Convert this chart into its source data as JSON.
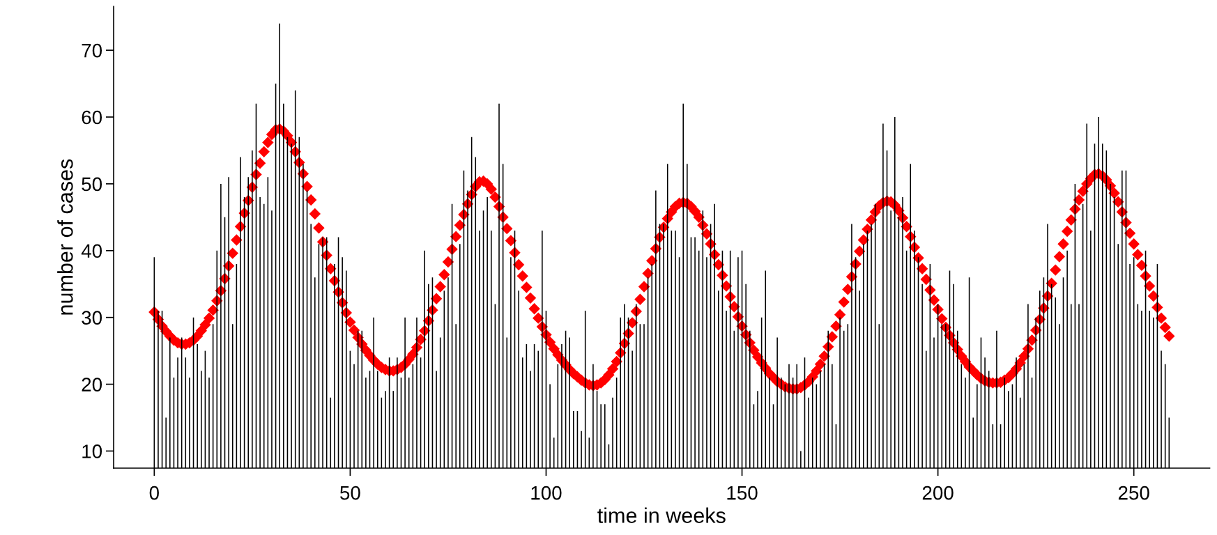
{
  "chart_data": {
    "type": "bar",
    "xlabel": "time in weeks",
    "ylabel": "number of cases",
    "x": [
      0,
      1,
      2,
      3,
      4,
      5,
      6,
      7,
      8,
      9,
      10,
      11,
      12,
      13,
      14,
      15,
      16,
      17,
      18,
      19,
      20,
      21,
      22,
      23,
      24,
      25,
      26,
      27,
      28,
      29,
      30,
      31,
      32,
      33,
      34,
      35,
      36,
      37,
      38,
      39,
      40,
      41,
      42,
      43,
      44,
      45,
      46,
      47,
      48,
      49,
      50,
      51,
      52,
      53,
      54,
      55,
      56,
      57,
      58,
      59,
      60,
      61,
      62,
      63,
      64,
      65,
      66,
      67,
      68,
      69,
      70,
      71,
      72,
      73,
      74,
      75,
      76,
      77,
      78,
      79,
      80,
      81,
      82,
      83,
      84,
      85,
      86,
      87,
      88,
      89,
      90,
      91,
      92,
      93,
      94,
      95,
      96,
      97,
      98,
      99,
      100,
      101,
      102,
      103,
      104,
      105,
      106,
      107,
      108,
      109,
      110,
      111,
      112,
      113,
      114,
      115,
      116,
      117,
      118,
      119,
      120,
      121,
      122,
      123,
      124,
      125,
      126,
      127,
      128,
      129,
      130,
      131,
      132,
      133,
      134,
      135,
      136,
      137,
      138,
      139,
      140,
      141,
      142,
      143,
      144,
      145,
      146,
      147,
      148,
      149,
      150,
      151,
      152,
      153,
      154,
      155,
      156,
      157,
      158,
      159,
      160,
      161,
      162,
      163,
      164,
      165,
      166,
      167,
      168,
      169,
      170,
      171,
      172,
      173,
      174,
      175,
      176,
      177,
      178,
      179,
      180,
      181,
      182,
      183,
      184,
      185,
      186,
      187,
      188,
      189,
      190,
      191,
      192,
      193,
      194,
      195,
      196,
      197,
      198,
      199,
      200,
      201,
      202,
      203,
      204,
      205,
      206,
      207,
      208,
      209,
      210,
      211,
      212,
      213,
      214,
      215,
      216,
      217,
      218,
      219,
      220,
      221,
      222,
      223,
      224,
      225,
      226,
      227,
      228,
      229,
      230,
      231,
      232,
      233,
      234,
      235,
      236,
      237,
      238,
      239,
      240,
      241,
      242,
      243,
      244,
      245,
      246,
      247,
      248,
      249,
      250,
      251,
      252,
      253,
      254,
      255,
      256,
      257,
      258,
      259
    ],
    "xlim": [
      -10.36,
      269.36
    ],
    "xticks": [
      0,
      50,
      100,
      150,
      200,
      250
    ],
    "ylim": [
      7.44,
      76.56
    ],
    "yticks": [
      10,
      20,
      30,
      40,
      50,
      60,
      70
    ],
    "grid": false,
    "series": [
      {
        "color": "#000000",
        "values": [
          39,
          31,
          31,
          15,
          27,
          21,
          24,
          27,
          24,
          21,
          30,
          26,
          22,
          25,
          21,
          29,
          40,
          50,
          45,
          51,
          29,
          38,
          54,
          48,
          51,
          55,
          62,
          48,
          47,
          51,
          46,
          65,
          74,
          62,
          57,
          56,
          64,
          57,
          53,
          49,
          44,
          36,
          41,
          42,
          42,
          18,
          38,
          42,
          39,
          37,
          25,
          23,
          28,
          28,
          21,
          22,
          30,
          22,
          18,
          19,
          24,
          19,
          24,
          21,
          30,
          21,
          23,
          30,
          24,
          40,
          35,
          36,
          22,
          27,
          34,
          36,
          47,
          29,
          41,
          52,
          49,
          57,
          54,
          43,
          46,
          48,
          43,
          32,
          62,
          53,
          27,
          39,
          43,
          34,
          24,
          26,
          22,
          26,
          25,
          43,
          31,
          20,
          12,
          23,
          26,
          28,
          27,
          16,
          16,
          13,
          31,
          12,
          23,
          19,
          17,
          17,
          11,
          18,
          21,
          30,
          32,
          30,
          25,
          32,
          29,
          29,
          36,
          38,
          49,
          44,
          44,
          53,
          43,
          43,
          39,
          62,
          53,
          42,
          42,
          40,
          46,
          39,
          44,
          47,
          34,
          40,
          31,
          40,
          28,
          39,
          40,
          35,
          28,
          17,
          19,
          30,
          37,
          21,
          17,
          27,
          21,
          20,
          23,
          21,
          23,
          10,
          24,
          18,
          21,
          20,
          22,
          23,
          28,
          23,
          14,
          30,
          28,
          29,
          44,
          39,
          34,
          41,
          43,
          44,
          47,
          29,
          59,
          55,
          46,
          60,
          45,
          48,
          40,
          53,
          43,
          39,
          35,
          25,
          38,
          27,
          32,
          29,
          29,
          37,
          35,
          28,
          23,
          21,
          36,
          15,
          20,
          27,
          24,
          22,
          14,
          28,
          14,
          21,
          19,
          20,
          24,
          18,
          23,
          32,
          21,
          30,
          34,
          36,
          44,
          35,
          33,
          29,
          36,
          40,
          32,
          50,
          32,
          47,
          59,
          43,
          56,
          60,
          56,
          55,
          50,
          48,
          41,
          52,
          52,
          38,
          39,
          32,
          31,
          40,
          31,
          30,
          38,
          25,
          23,
          15
        ]
      },
      {
        "type": "scatter",
        "color": "#ff0000",
        "marker": "diamond",
        "values": [
          30.8,
          29.7,
          28.7,
          27.9,
          27.2,
          26.6,
          26.2,
          26.0,
          26.0,
          26.2,
          26.6,
          27.2,
          28.0,
          28.9,
          29.9,
          31.1,
          32.5,
          34.0,
          35.8,
          37.7,
          39.6,
          41.6,
          43.6,
          45.6,
          47.5,
          49.5,
          51.4,
          53.1,
          54.8,
          56.2,
          57.4,
          58.1,
          58.2,
          57.9,
          57.2,
          56.2,
          54.8,
          53.2,
          51.5,
          49.6,
          47.6,
          45.5,
          43.4,
          41.3,
          39.3,
          37.3,
          35.5,
          33.8,
          32.2,
          30.7,
          29.3,
          28.1,
          27.0,
          26.0,
          25.1,
          24.3,
          23.6,
          23.0,
          22.5,
          22.2,
          22.0,
          22.0,
          22.2,
          22.5,
          23.0,
          23.7,
          24.5,
          25.5,
          26.7,
          28.0,
          29.5,
          31.1,
          32.8,
          34.6,
          36.4,
          38.3,
          40.2,
          42.1,
          43.8,
          45.4,
          47.0,
          48.4,
          49.6,
          50.3,
          50.4,
          50.0,
          49.2,
          48.0,
          46.6,
          45.0,
          43.3,
          41.5,
          39.7,
          37.9,
          36.2,
          34.5,
          32.9,
          31.3,
          29.9,
          28.6,
          27.4,
          26.3,
          25.3,
          24.4,
          23.6,
          22.9,
          22.2,
          21.6,
          21.1,
          20.6,
          20.2,
          19.9,
          19.8,
          19.9,
          20.2,
          20.7,
          21.4,
          22.3,
          23.4,
          24.7,
          26.1,
          27.6,
          29.2,
          30.9,
          32.7,
          34.6,
          36.6,
          38.5,
          40.3,
          42.0,
          43.5,
          44.8,
          45.8,
          46.6,
          47.1,
          47.2,
          47.1,
          46.6,
          45.9,
          45.0,
          43.8,
          42.5,
          41.0,
          39.4,
          37.9,
          36.3,
          34.7,
          33.1,
          31.6,
          30.1,
          28.7,
          27.4,
          26.2,
          25.1,
          24.1,
          23.2,
          22.4,
          21.6,
          21.0,
          20.4,
          20.0,
          19.6,
          19.4,
          19.3,
          19.3,
          19.5,
          19.9,
          20.4,
          21.1,
          22.0,
          23.0,
          24.2,
          25.6,
          27.1,
          28.7,
          30.4,
          32.3,
          34.2,
          36.1,
          38.0,
          39.9,
          41.6,
          43.2,
          44.6,
          45.8,
          46.7,
          47.2,
          47.4,
          47.3,
          46.8,
          46.0,
          44.9,
          43.6,
          42.1,
          40.5,
          38.9,
          37.3,
          35.7,
          34.1,
          32.6,
          31.2,
          29.8,
          28.5,
          27.3,
          26.2,
          25.2,
          24.2,
          23.4,
          22.6,
          22.0,
          21.4,
          20.9,
          20.5,
          20.3,
          20.2,
          20.2,
          20.3,
          20.6,
          21.0,
          21.6,
          22.3,
          23.2,
          24.2,
          25.3,
          26.6,
          28.1,
          29.7,
          31.4,
          33.2,
          35.1,
          37.1,
          39.1,
          41.0,
          42.9,
          44.6,
          46.2,
          47.6,
          48.9,
          50.0,
          50.8,
          51.4,
          51.5,
          51.2,
          50.6,
          49.7,
          48.6,
          47.3,
          45.8,
          44.2,
          42.6,
          41.0,
          39.4,
          37.8,
          36.2,
          34.7,
          33.2,
          31.5,
          29.9,
          28.5,
          27.2
        ]
      }
    ]
  }
}
